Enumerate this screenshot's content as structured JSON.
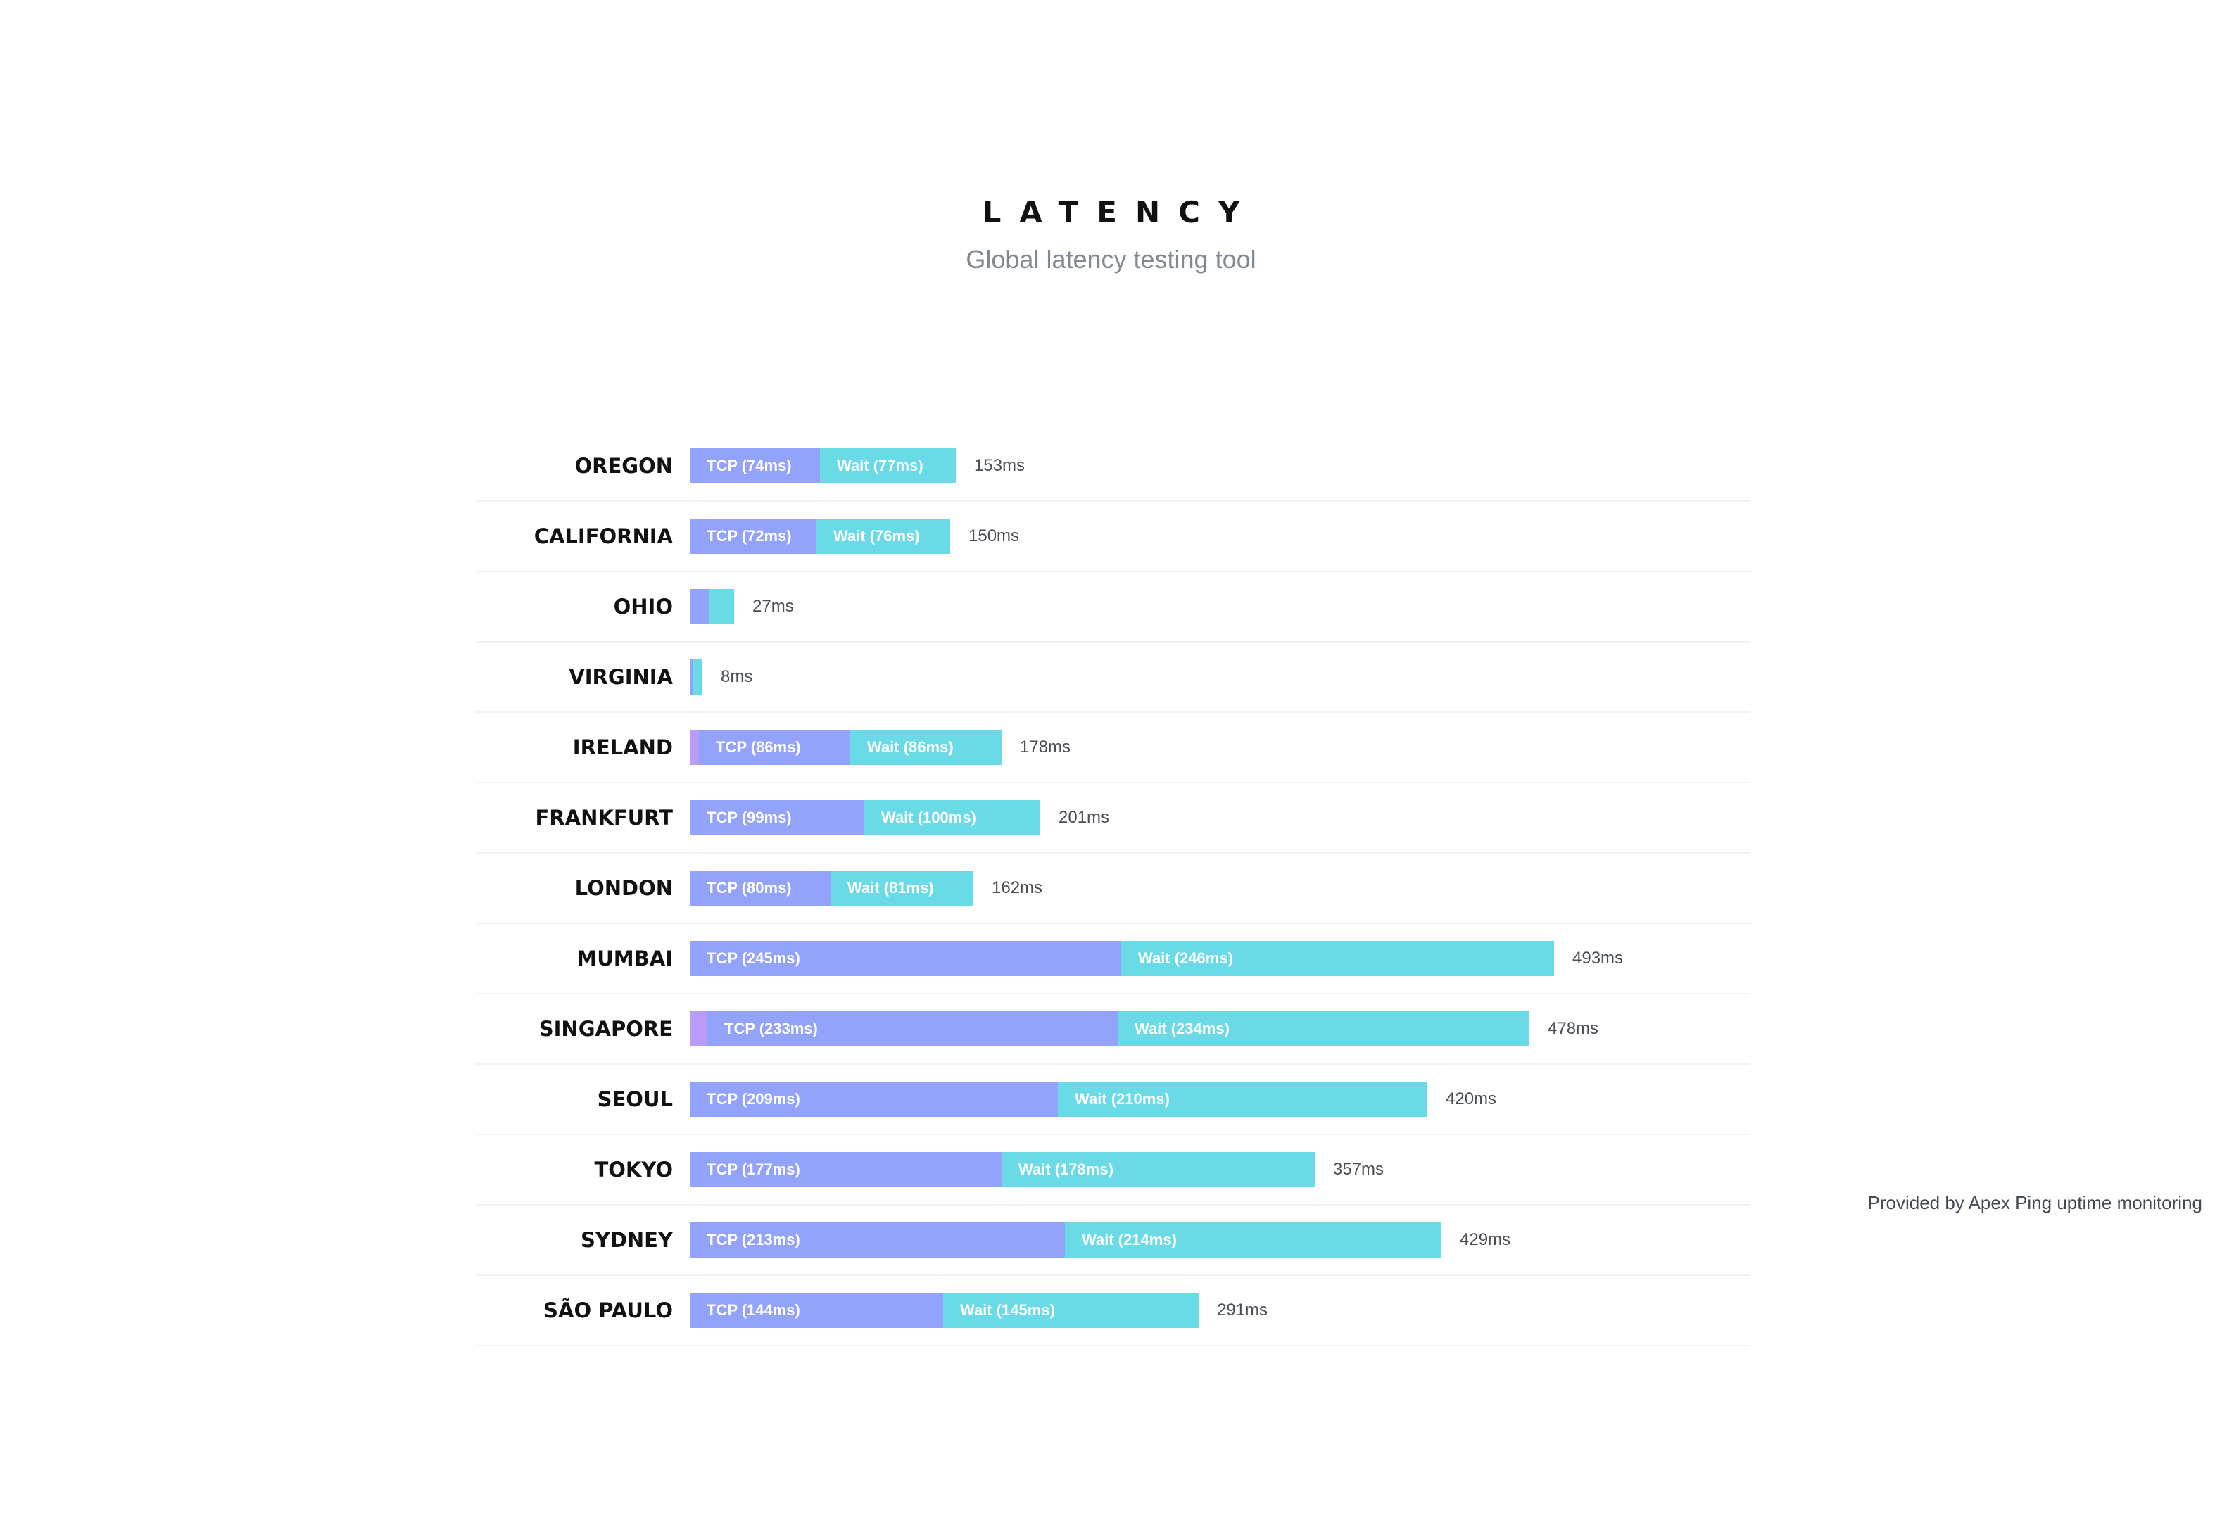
{
  "header": {
    "title": "LATENCY",
    "subtitle": "Global latency testing tool"
  },
  "provider_note": "Provided by Apex Ping uptime monitoring",
  "colors": {
    "dns": "#b99cf8",
    "tcp": "#93a3fc",
    "wait": "#6adae7"
  },
  "chart_data": {
    "type": "bar",
    "orientation": "horizontal",
    "stacked": true,
    "unit": "ms",
    "max_value": 500,
    "rows": [
      {
        "region": "OREGON",
        "dns": 0,
        "tcp": 74,
        "wait": 77,
        "tcp_label": "TCP (74ms)",
        "wait_label": "Wait (77ms)",
        "total_label": "153ms"
      },
      {
        "region": "CALIFORNIA",
        "dns": 0,
        "tcp": 72,
        "wait": 76,
        "tcp_label": "TCP (72ms)",
        "wait_label": "Wait (76ms)",
        "total_label": "150ms"
      },
      {
        "region": "OHIO",
        "dns": 0,
        "tcp": 11,
        "wait": 14,
        "tcp_label": "",
        "wait_label": "",
        "total_label": "27ms"
      },
      {
        "region": "VIRGINIA",
        "dns": 0,
        "tcp": 2,
        "wait": 5,
        "tcp_label": "",
        "wait_label": "",
        "total_label": "8ms"
      },
      {
        "region": "IRELAND",
        "dns": 5,
        "tcp": 86,
        "wait": 86,
        "tcp_label": "TCP (86ms)",
        "wait_label": "Wait (86ms)",
        "total_label": "178ms"
      },
      {
        "region": "FRANKFURT",
        "dns": 0,
        "tcp": 99,
        "wait": 100,
        "tcp_label": "TCP (99ms)",
        "wait_label": "Wait (100ms)",
        "total_label": "201ms"
      },
      {
        "region": "LONDON",
        "dns": 0,
        "tcp": 80,
        "wait": 81,
        "tcp_label": "TCP (80ms)",
        "wait_label": "Wait (81ms)",
        "total_label": "162ms"
      },
      {
        "region": "MUMBAI",
        "dns": 0,
        "tcp": 245,
        "wait": 246,
        "tcp_label": "TCP (245ms)",
        "wait_label": "Wait (246ms)",
        "total_label": "493ms"
      },
      {
        "region": "SINGAPORE",
        "dns": 10,
        "tcp": 233,
        "wait": 234,
        "tcp_label": "TCP (233ms)",
        "wait_label": "Wait (234ms)",
        "total_label": "478ms"
      },
      {
        "region": "SEOUL",
        "dns": 0,
        "tcp": 209,
        "wait": 210,
        "tcp_label": "TCP (209ms)",
        "wait_label": "Wait (210ms)",
        "total_label": "420ms"
      },
      {
        "region": "TOKYO",
        "dns": 0,
        "tcp": 177,
        "wait": 178,
        "tcp_label": "TCP (177ms)",
        "wait_label": "Wait (178ms)",
        "total_label": "357ms"
      },
      {
        "region": "SYDNEY",
        "dns": 0,
        "tcp": 213,
        "wait": 214,
        "tcp_label": "TCP (213ms)",
        "wait_label": "Wait (214ms)",
        "total_label": "429ms"
      },
      {
        "region": "SÃO PAULO",
        "dns": 0,
        "tcp": 144,
        "wait": 145,
        "tcp_label": "TCP (144ms)",
        "wait_label": "Wait (145ms)",
        "total_label": "291ms"
      }
    ]
  }
}
